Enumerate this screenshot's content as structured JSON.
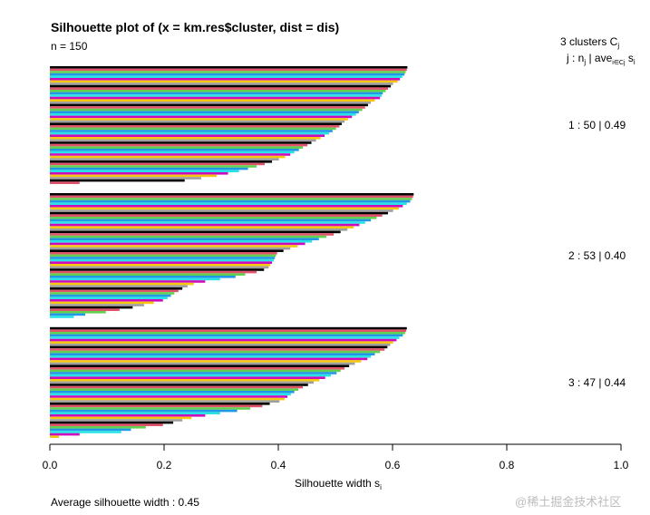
{
  "chart_data": {
    "type": "bar",
    "orientation": "horizontal",
    "title": "Silhouette plot of (x = km.res$cluster, dist = dis)",
    "n_label": "n = 150",
    "xlabel": "Silhouette width s",
    "xlabel_sub": "i",
    "xlim": [
      0.0,
      1.0
    ],
    "x_ticks": [
      "0.0",
      "0.2",
      "0.4",
      "0.6",
      "0.8",
      "1.0"
    ],
    "legend_header_line1": "3  clusters  C",
    "legend_header_line1_sub": "j",
    "legend_header_line2": "j :  n",
    "legend_header_line2_sub_j": "j",
    "legend_header_line2_ave": " | ave",
    "legend_header_line2_sub_set": "i∈Cj",
    "legend_header_line2_s": "  s",
    "legend_header_line2_sub_i": "i",
    "average_text": "Average silhouette width :  0.45",
    "watermark": "@稀土掘金技术社区",
    "bar_colors": [
      "#000000",
      "#df536b",
      "#61d04f",
      "#2297e6",
      "#28e2e5",
      "#cd0bbc",
      "#f5c710",
      "#9e9e9e"
    ],
    "clusters": [
      {
        "label": "1 :   50  |  0.49",
        "n": 50,
        "avg": 0.49,
        "values": [
          0.626,
          0.625,
          0.623,
          0.621,
          0.617,
          0.613,
          0.609,
          0.601,
          0.597,
          0.592,
          0.588,
          0.583,
          0.581,
          0.578,
          0.569,
          0.562,
          0.557,
          0.552,
          0.547,
          0.541,
          0.536,
          0.529,
          0.522,
          0.516,
          0.511,
          0.507,
          0.501,
          0.495,
          0.489,
          0.481,
          0.474,
          0.466,
          0.458,
          0.451,
          0.443,
          0.436,
          0.428,
          0.421,
          0.412,
          0.401,
          0.389,
          0.376,
          0.362,
          0.347,
          0.331,
          0.312,
          0.292,
          0.265,
          0.236,
          0.052
        ]
      },
      {
        "label": "2 :   53  |  0.40",
        "n": 53,
        "avg": 0.4,
        "values": [
          0.637,
          0.636,
          0.634,
          0.631,
          0.625,
          0.618,
          0.611,
          0.601,
          0.592,
          0.582,
          0.572,
          0.562,
          0.552,
          0.542,
          0.532,
          0.521,
          0.509,
          0.497,
          0.484,
          0.471,
          0.459,
          0.447,
          0.434,
          0.421,
          0.409,
          0.398,
          0.396,
          0.394,
          0.392,
          0.389,
          0.386,
          0.383,
          0.375,
          0.362,
          0.342,
          0.325,
          0.298,
          0.272,
          0.252,
          0.241,
          0.232,
          0.225,
          0.218,
          0.212,
          0.206,
          0.198,
          0.182,
          0.165,
          0.145,
          0.122,
          0.098,
          0.062,
          0.042
        ]
      },
      {
        "label": "3 :   47  |  0.44",
        "n": 47,
        "avg": 0.44,
        "values": [
          0.625,
          0.624,
          0.622,
          0.618,
          0.612,
          0.607,
          0.601,
          0.596,
          0.591,
          0.586,
          0.578,
          0.569,
          0.562,
          0.556,
          0.545,
          0.534,
          0.524,
          0.516,
          0.509,
          0.502,
          0.492,
          0.482,
          0.472,
          0.462,
          0.452,
          0.443,
          0.435,
          0.428,
          0.422,
          0.416,
          0.411,
          0.402,
          0.385,
          0.372,
          0.351,
          0.328,
          0.298,
          0.272,
          0.248,
          0.232,
          0.216,
          0.198,
          0.168,
          0.142,
          0.125,
          0.052,
          0.016
        ]
      }
    ]
  }
}
